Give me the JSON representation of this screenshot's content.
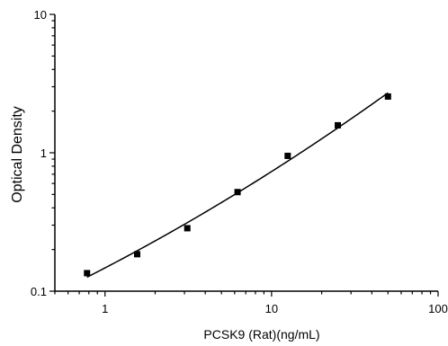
{
  "chart_data": {
    "type": "scatter",
    "title": "",
    "xlabel": "PCSK9 (Rat)(ng/mL)",
    "ylabel": "Optical Density",
    "x_scale": "log",
    "y_scale": "log",
    "xlim": [
      0.5,
      100
    ],
    "ylim": [
      0.1,
      10
    ],
    "x_ticks": [
      1,
      10,
      100
    ],
    "x_tick_labels": [
      "1",
      "10",
      "100"
    ],
    "y_ticks": [
      0.1,
      1,
      10
    ],
    "y_tick_labels": [
      "0.1",
      "1",
      "10"
    ],
    "grid": false,
    "legend": "none",
    "series": [
      {
        "x": [
          0.78,
          1.56,
          3.12,
          6.25,
          12.5,
          25,
          50
        ],
        "y": [
          0.135,
          0.185,
          0.285,
          0.52,
          0.95,
          1.58,
          2.55
        ],
        "color": "#000000",
        "marker": "square",
        "fit_curve": true
      }
    ]
  }
}
